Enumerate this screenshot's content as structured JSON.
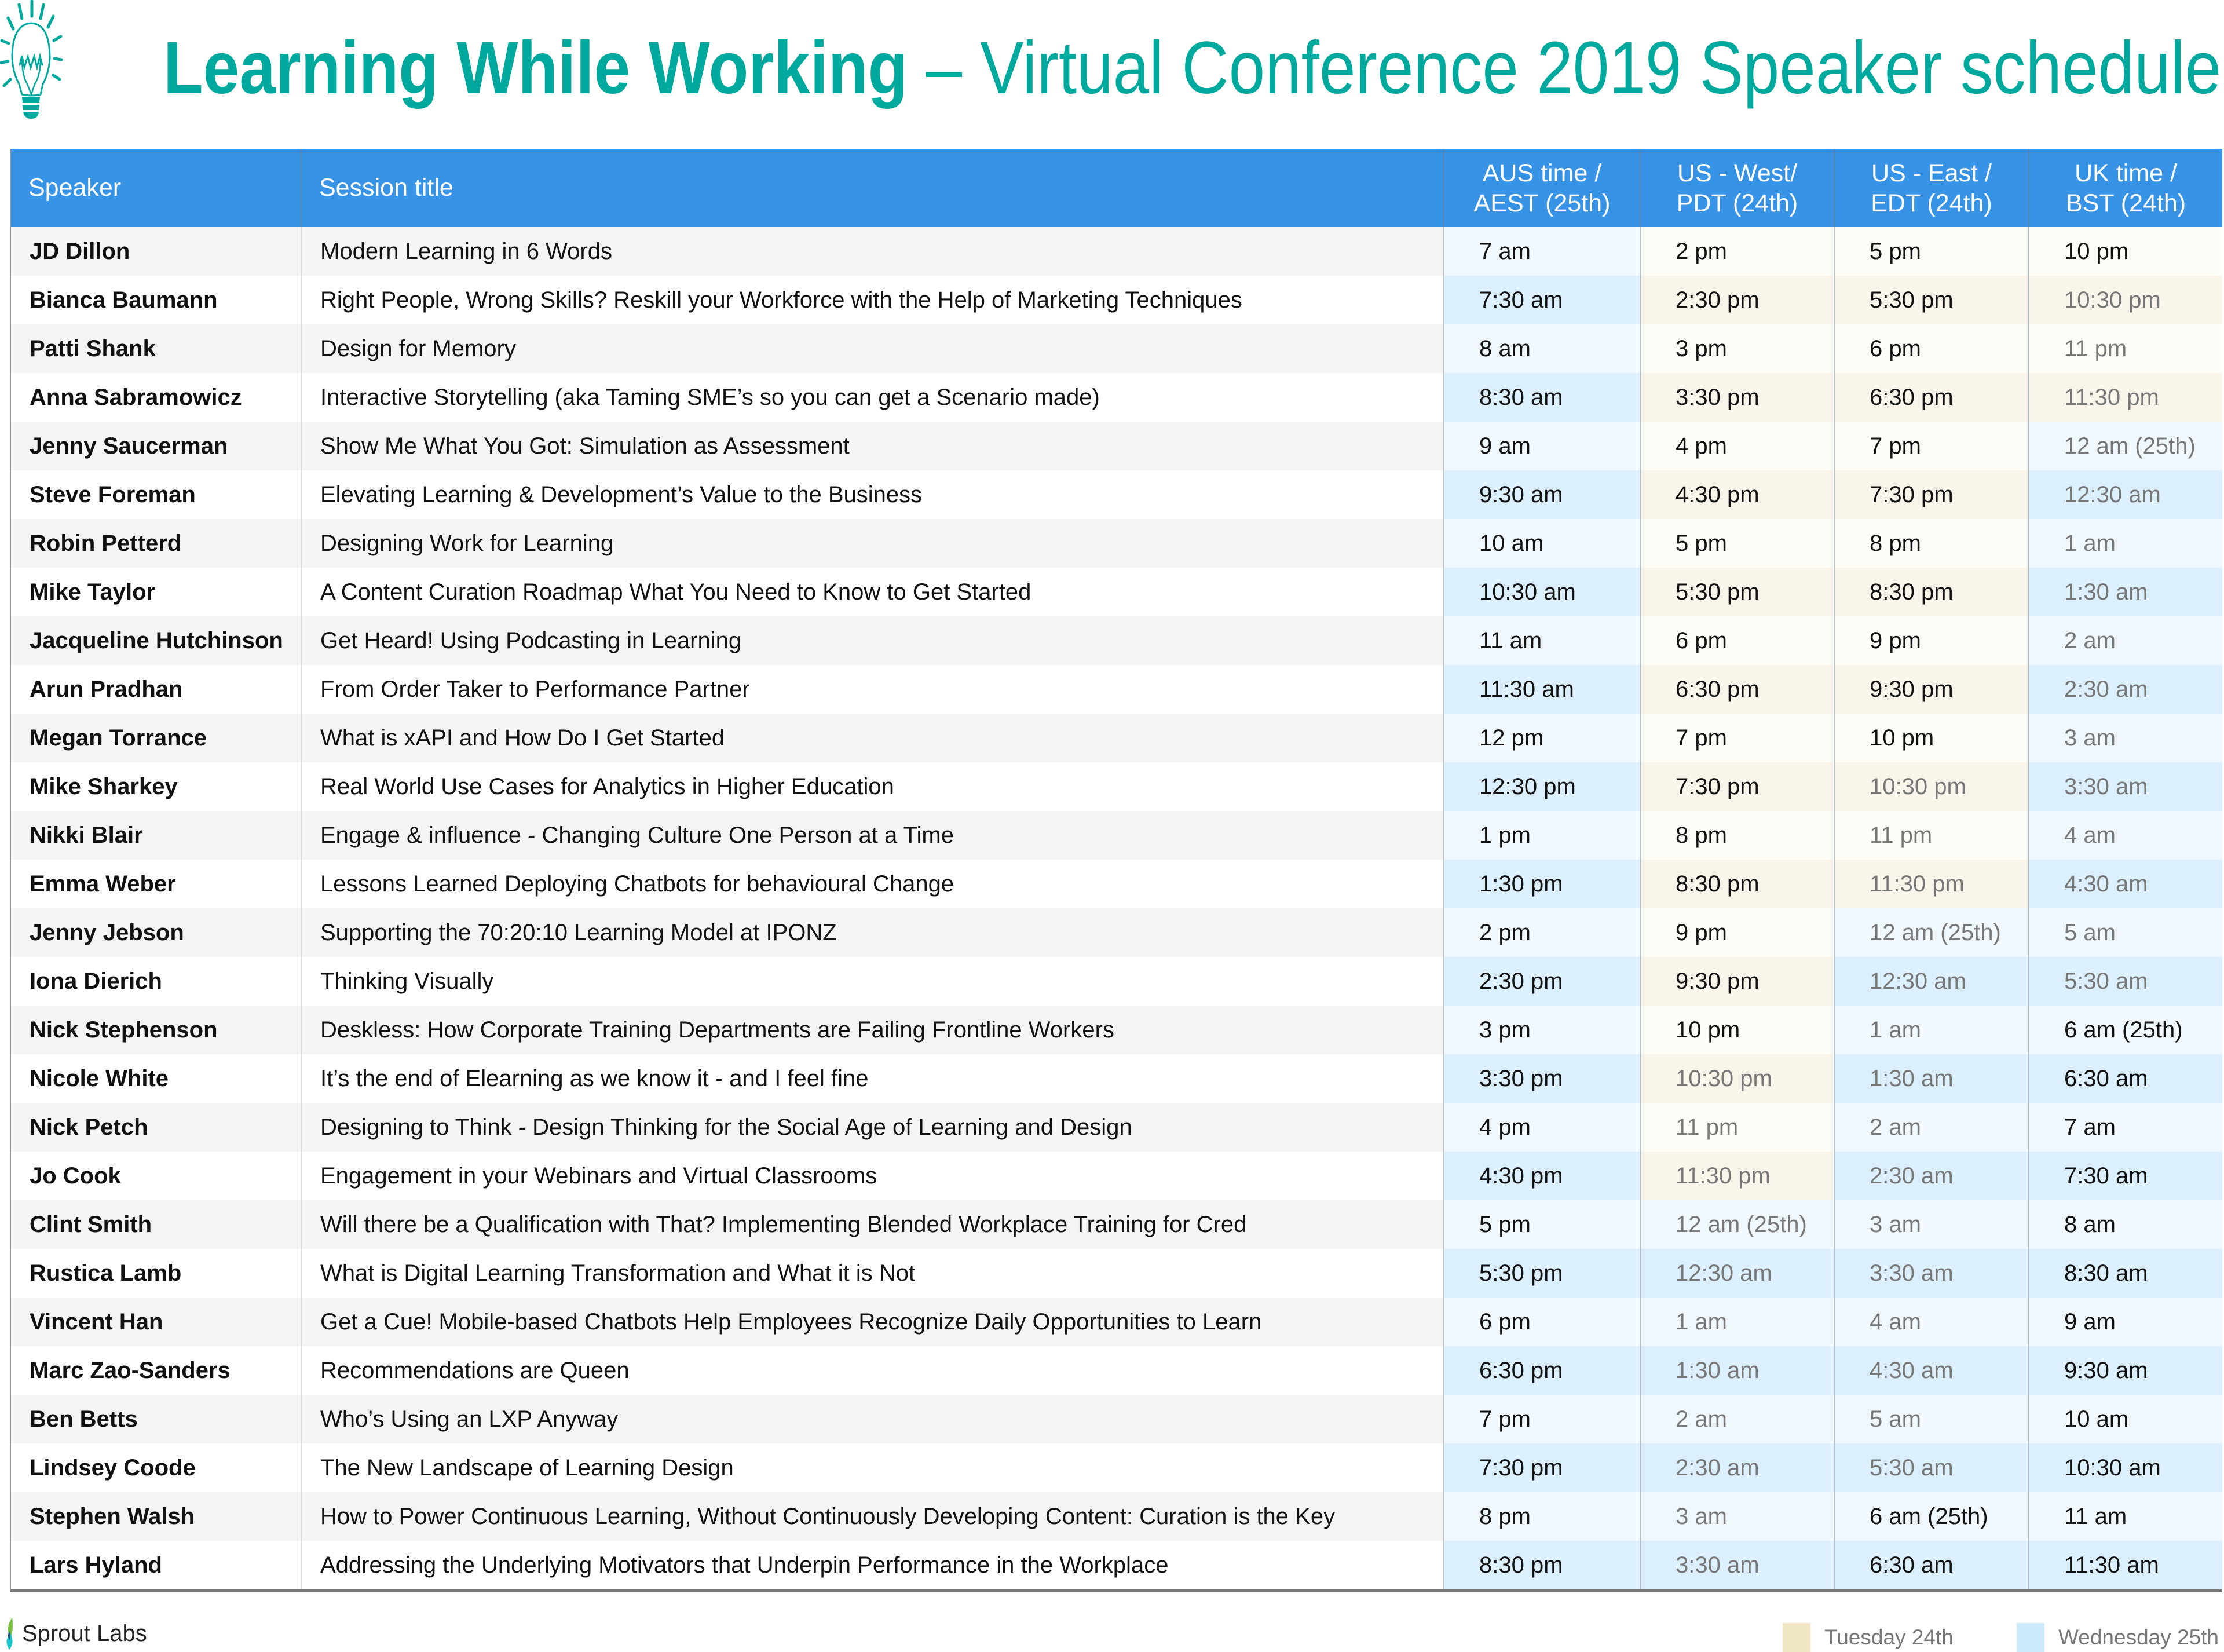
{
  "header": {
    "title_bold": "Learning While Working",
    "title_rest": " – Virtual Conference  2019 Speaker schedule"
  },
  "table": {
    "columns": [
      "Speaker",
      "Session title",
      "AUS time /\nAEST (25th)",
      "US - West/\nPDT (24th)",
      "US - East /\nEDT (24th)",
      "UK time  /\nBST (24th)"
    ],
    "rows": [
      [
        "JD Dillon",
        "Modern Learning in 6 Words",
        "7 am",
        "2 pm",
        "5 pm",
        "10 pm"
      ],
      [
        "Bianca Baumann",
        "Right People, Wrong Skills? Reskill your Workforce with the Help of Marketing Techniques",
        "7:30 am",
        "2:30 pm",
        "5:30 pm",
        "10:30 pm"
      ],
      [
        "Patti Shank",
        "Design for Memory",
        "8 am",
        "3 pm",
        "6 pm",
        "11 pm"
      ],
      [
        "Anna Sabramowicz",
        "Interactive Storytelling (aka Taming SME’s so you can get a Scenario made)",
        "8:30 am",
        "3:30 pm",
        "6:30 pm",
        "11:30 pm"
      ],
      [
        "Jenny Saucerman",
        "Show Me What You Got: Simulation as Assessment",
        "9 am",
        "4 pm",
        "7 pm",
        "12 am (25th)"
      ],
      [
        "Steve Foreman",
        "Elevating Learning & Development’s Value to the Business",
        "9:30 am",
        "4:30 pm",
        "7:30 pm",
        "12:30 am"
      ],
      [
        "Robin Petterd",
        "Designing Work for Learning",
        "10 am",
        "5 pm",
        "8 pm",
        "1 am"
      ],
      [
        "Mike Taylor",
        "A Content Curation Roadmap What You Need to Know to Get Started",
        "10:30 am",
        "5:30 pm",
        "8:30 pm",
        "1:30 am"
      ],
      [
        "Jacqueline Hutchinson",
        "Get Heard! Using Podcasting in Learning",
        "11 am",
        "6 pm",
        "9 pm",
        "2 am"
      ],
      [
        "Arun Pradhan",
        "From Order Taker to Performance Partner",
        "11:30 am",
        "6:30 pm",
        "9:30 pm",
        "2:30 am"
      ],
      [
        "Megan Torrance",
        "What is xAPI and How Do I Get Started",
        "12 pm",
        "7 pm",
        "10 pm",
        "3 am"
      ],
      [
        "Mike Sharkey",
        "Real World Use Cases for Analytics in Higher Education",
        "12:30 pm",
        "7:30 pm",
        "10:30 pm",
        "3:30 am"
      ],
      [
        "Nikki Blair",
        "Engage & influence - Changing Culture One Person at a Time",
        "1 pm",
        "8 pm",
        "11 pm",
        "4 am"
      ],
      [
        "Emma Weber",
        "Lessons Learned Deploying Chatbots for behavioural Change",
        "1:30 pm",
        "8:30 pm",
        "11:30 pm",
        "4:30 am"
      ],
      [
        "Jenny Jebson",
        "Supporting the 70:20:10 Learning Model at IPONZ",
        "2 pm",
        "9 pm",
        "12 am (25th)",
        "5 am"
      ],
      [
        "Iona Dierich",
        "Thinking Visually",
        "2:30 pm",
        "9:30 pm",
        "12:30 am",
        "5:30 am"
      ],
      [
        "Nick Stephenson",
        "Deskless: How Corporate Training Departments are Failing Frontline Workers",
        "3 pm",
        "10 pm",
        "1 am",
        "6 am (25th)"
      ],
      [
        "Nicole White",
        "It’s the end of Elearning as we know it - and I feel fine",
        "3:30 pm",
        "10:30 pm",
        "1:30 am",
        "6:30 am"
      ],
      [
        "Nick Petch",
        "Designing to Think -  Design Thinking for the Social Age of Learning and Design",
        "4 pm",
        "11 pm",
        "2 am",
        "7 am"
      ],
      [
        "Jo Cook",
        "Engagement in your Webinars and Virtual Classrooms",
        "4:30 pm",
        "11:30 pm",
        "2:30 am",
        "7:30 am"
      ],
      [
        "Clint Smith",
        "Will there be a Qualification with That?  Implementing Blended Workplace Training for Cred",
        "5 pm",
        "12 am (25th)",
        "3 am",
        "8 am"
      ],
      [
        "Rustica Lamb",
        "What is Digital Learning Transformation and What it is Not",
        "5:30 pm",
        "12:30 am",
        "3:30 am",
        "8:30 am"
      ],
      [
        "Vincent Han",
        "Get a Cue! Mobile-based Chatbots Help Employees Recognize Daily Opportunities to Learn",
        "6 pm",
        "1 am",
        "4 am",
        "9 am"
      ],
      [
        "Marc Zao-Sanders",
        "Recommendations are Queen",
        "6:30 pm",
        "1:30 am",
        "4:30 am",
        "9:30 am"
      ],
      [
        "Ben Betts",
        "Who’s Using an LXP Anyway",
        "7 pm",
        "2 am",
        "5 am",
        "10 am"
      ],
      [
        "Lindsey Coode",
        "The New Landscape of Learning Design",
        "7:30 pm",
        "2:30 am",
        "5:30 am",
        "10:30 am"
      ],
      [
        "Stephen Walsh",
        "How to Power Continuous Learning, Without Continuously Developing Content: Curation is the Key",
        "8 pm",
        "3 am",
        "6 am (25th)",
        "11 am"
      ],
      [
        "Lars Hyland",
        "Addressing the Underlying Motivators that Underpin Performance in the Workplace",
        "8:30 pm",
        "3:30 am",
        "6:30 am",
        "11:30 am"
      ]
    ]
  },
  "footer": {
    "brand": "Sprout Labs",
    "legend": [
      {
        "label": "Tuesday 24th",
        "color": "#f1e7c6"
      },
      {
        "label": "Wednesday 25th",
        "color": "#cdeafd"
      }
    ]
  },
  "colors": {
    "title": "#00a99d",
    "header_bg": "#3793e6",
    "tuesday_light": "#fdfdf7",
    "tuesday_dark": "#f9f5ea",
    "wednesday_light": "#f0f8fe",
    "wednesday_dark": "#dbf0fc",
    "night_text": "#777777"
  }
}
